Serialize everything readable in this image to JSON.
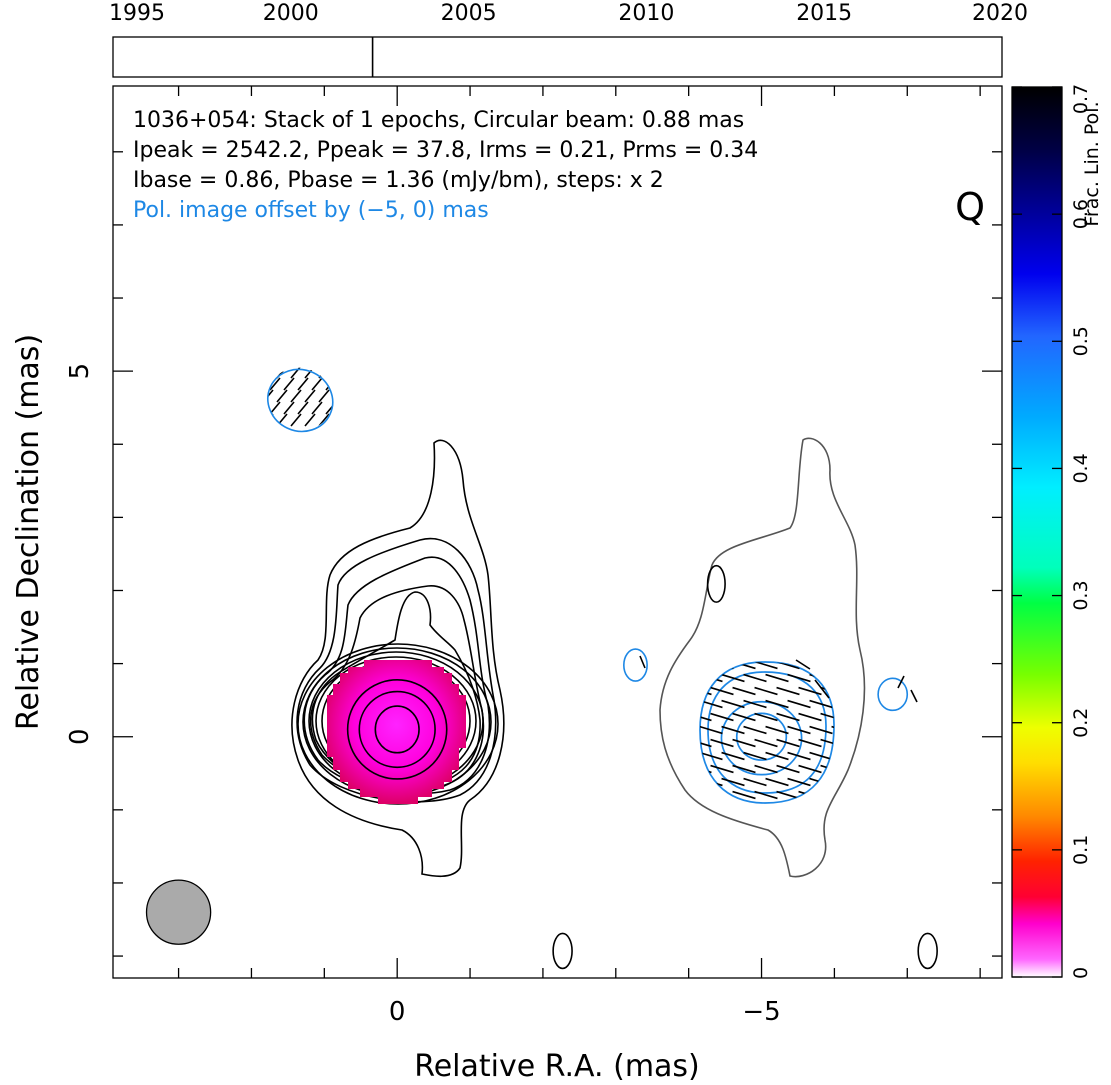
{
  "timeline": {
    "years": [
      "1995",
      "2000",
      "2005",
      "2010",
      "2015",
      "2020"
    ],
    "range": [
      1995,
      2020
    ],
    "epochs": [
      2002.3
    ]
  },
  "info": {
    "line1": "1036+054: Stack of 1 epochs, Circular beam: 0.88 mas",
    "line2": "Ipeak = 2542.2, Ppeak = 37.8, Irms = 0.21, Prms = 0.34",
    "line3": "Ibase = 0.86, Pbase = 1.36 (mJy/bm), steps: x 2",
    "offset_note": "Pol. image offset by (−5, 0) mas",
    "band": "Q"
  },
  "axes": {
    "xlabel": "Relative R.A. (mas)",
    "ylabel": "Relative Declination (mas)",
    "xticks": [
      {
        "v": 0,
        "label": "0"
      },
      {
        "v": -5,
        "label": "−5"
      }
    ],
    "yticks": [
      {
        "v": 0,
        "label": "0"
      },
      {
        "v": 5,
        "label": "5"
      }
    ],
    "xlim": [
      3.9,
      -8.3
    ],
    "ylim": [
      -3.3,
      8.9
    ]
  },
  "colorbar": {
    "label": "Frac. Lin. Pol.",
    "range": [
      0,
      0.7
    ],
    "ticks": [
      {
        "v": 0,
        "label": "0"
      },
      {
        "v": 0.1,
        "label": "0.1"
      },
      {
        "v": 0.2,
        "label": "0.2"
      },
      {
        "v": 0.3,
        "label": "0.3"
      },
      {
        "v": 0.4,
        "label": "0.4"
      },
      {
        "v": 0.5,
        "label": "0.5"
      },
      {
        "v": 0.6,
        "label": "0.6"
      },
      {
        "v": 0.7,
        "label": "0.7"
      }
    ]
  },
  "colors": {
    "stokes_i": "#000000",
    "pol": "#1e88e5",
    "base_contour": "#555555",
    "note": "#1e88e5",
    "beam_fill": "#aaaaaa"
  },
  "chart_data": {
    "type": "heatmap",
    "title": "1036+054: Stack of 1 epochs, Circular beam: 0.88 mas",
    "xlabel": "Relative R.A. (mas)",
    "ylabel": "Relative Declination (mas)",
    "xlim": [
      3.9,
      -8.3
    ],
    "ylim": [
      -3.3,
      8.9
    ],
    "core": {
      "ra": 0,
      "dec": 0.1
    },
    "beam": {
      "ra": 3.0,
      "dec": -2.4,
      "diameter": 0.88
    },
    "fraclinpol_map": {
      "ra": 0,
      "dec": 0.1,
      "radius": 0.95,
      "value_range": [
        0,
        0.05
      ]
    },
    "stokes_i_ellipse_contours": [
      {
        "ra": 0,
        "dec": 0.1,
        "rx": 0.3,
        "ry": 0.32
      },
      {
        "ra": 0,
        "dec": 0.1,
        "rx": 0.52,
        "ry": 0.52
      },
      {
        "ra": 0,
        "dec": 0.1,
        "rx": 0.68,
        "ry": 0.68
      }
    ],
    "pol_ellipse_contours": [
      {
        "ra": -5,
        "dec": 0,
        "rx": 0.34,
        "ry": 0.32
      },
      {
        "ra": -5,
        "dec": -0.02,
        "rx": 0.55,
        "ry": 0.5
      }
    ],
    "small_islands": [
      {
        "kind": "I",
        "ra": -2.27,
        "dec": -2.93,
        "rx": 0.13,
        "ry": 0.24
      },
      {
        "kind": "I",
        "ra": -7.28,
        "dec": -2.93,
        "rx": 0.13,
        "ry": 0.24
      },
      {
        "kind": "I",
        "ra": -4.38,
        "dec": 2.09,
        "rx": 0.12,
        "ry": 0.25
      },
      {
        "kind": "P",
        "ra": -3.27,
        "dec": 0.98,
        "rx": 0.16,
        "ry": 0.22
      },
      {
        "kind": "P",
        "ra": -6.8,
        "dec": 0.58,
        "rx": 0.2,
        "ry": 0.22
      },
      {
        "kind": "P",
        "ra": 1.33,
        "dec": 4.6,
        "rx": 0.45,
        "ry": 0.42
      }
    ],
    "evpa_ticks_deg": 35
  }
}
